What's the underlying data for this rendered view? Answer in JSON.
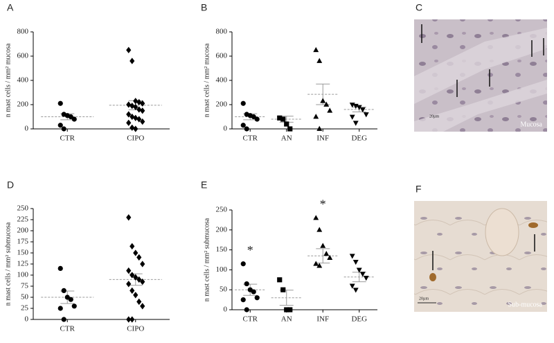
{
  "chart_data": [
    {
      "type": "dot",
      "panel": "A",
      "ylabel": "n mast cells / mm² mucosa",
      "categories": [
        "CTR",
        "CIPO"
      ],
      "markers": [
        "circle",
        "diamond"
      ],
      "color": "#000000",
      "groups": [
        [
          210,
          120,
          110,
          100,
          80,
          30,
          0
        ],
        [
          650,
          560,
          230,
          220,
          210,
          200,
          190,
          180,
          160,
          150,
          120,
          100,
          90,
          80,
          60,
          50,
          10,
          0
        ]
      ],
      "means": [
        100,
        195
      ],
      "errors": [
        25,
        38
      ],
      "annotations": [
        null,
        null
      ],
      "ylim": [
        0,
        800
      ],
      "yticks": [
        0,
        200,
        400,
        600,
        800
      ]
    },
    {
      "type": "dot",
      "panel": "B",
      "ylabel": "n mast cells / mm² mucosa",
      "categories": [
        "CTR",
        "AN",
        "INF",
        "DEG"
      ],
      "markers": [
        "circle",
        "square",
        "triangle-up",
        "triangle-down"
      ],
      "color": "#000000",
      "groups": [
        [
          210,
          120,
          110,
          100,
          80,
          30,
          0
        ],
        [
          90,
          80,
          40,
          0
        ],
        [
          650,
          560,
          230,
          200,
          150,
          100,
          0
        ],
        [
          200,
          190,
          180,
          160,
          120,
          100,
          50
        ]
      ],
      "means": [
        100,
        80,
        285,
        160
      ],
      "errors": [
        25,
        25,
        85,
        20
      ],
      "annotations": [
        null,
        null,
        null,
        null
      ],
      "ylim": [
        0,
        800
      ],
      "yticks": [
        0,
        200,
        400,
        600,
        800
      ]
    },
    {
      "type": "dot",
      "panel": "D",
      "ylabel": "n mast cells / mm² submucosa",
      "categories": [
        "CTR",
        "CIPO"
      ],
      "markers": [
        "circle",
        "diamond"
      ],
      "color": "#000000",
      "groups": [
        [
          115,
          65,
          50,
          45,
          30,
          25,
          0
        ],
        [
          230,
          165,
          150,
          140,
          125,
          110,
          100,
          95,
          90,
          85,
          80,
          65,
          55,
          40,
          30,
          0,
          0
        ]
      ],
      "means": [
        50,
        90
      ],
      "errors": [
        14,
        13
      ],
      "annotations": [
        null,
        null
      ],
      "ylim": [
        0,
        250
      ],
      "yticks": [
        0,
        25,
        50,
        75,
        100,
        125,
        150,
        175,
        200,
        225,
        250
      ]
    },
    {
      "type": "dot",
      "panel": "E",
      "ylabel": "n mast cells / mm² submucosa",
      "categories": [
        "CTR",
        "AN",
        "INF",
        "DEG"
      ],
      "markers": [
        "circle",
        "square",
        "triangle-up",
        "triangle-down"
      ],
      "color": "#000000",
      "groups": [
        [
          115,
          65,
          50,
          45,
          30,
          25,
          0
        ],
        [
          75,
          50,
          0,
          0
        ],
        [
          230,
          200,
          160,
          140,
          130,
          115,
          110
        ],
        [
          135,
          120,
          100,
          90,
          80,
          60,
          50
        ]
      ],
      "means": [
        50,
        30,
        135,
        82
      ],
      "errors": [
        14,
        19,
        18,
        12
      ],
      "annotations": [
        "*",
        null,
        "*",
        null
      ],
      "ylim": [
        0,
        250
      ],
      "yticks": [
        0,
        50,
        100,
        150,
        200,
        250
      ]
    }
  ],
  "images": [
    {
      "panel": "C",
      "caption": "Mucosa",
      "scale": "20µm"
    },
    {
      "panel": "F",
      "caption": "Sub-mucosa",
      "scale": "20µm"
    }
  ]
}
